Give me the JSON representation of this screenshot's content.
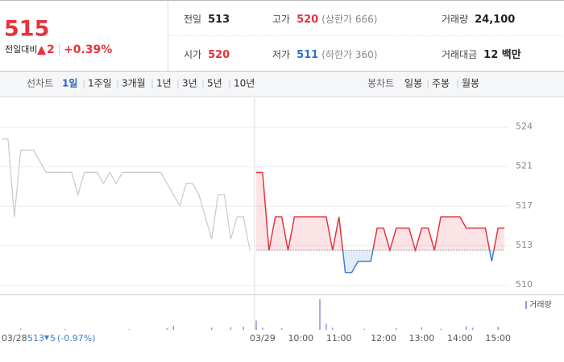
{
  "header": {
    "price": "515",
    "change_label": "전일대비",
    "change": "2",
    "change_pct": "+0.39%"
  },
  "stats": [
    {
      "label": "전일",
      "value": "513",
      "color": "#222"
    },
    {
      "label": "고가",
      "value": "520",
      "note": "(상한가 666)",
      "color": "#e8323c"
    },
    {
      "label": "거래량",
      "value": "24,100",
      "color": "#222"
    },
    {
      "label": "시가",
      "value": "520",
      "color": "#e8323c"
    },
    {
      "label": "저가",
      "value": "511",
      "note": "(하한가 360)",
      "color": "#2f6fd0"
    },
    {
      "label": "거래대금",
      "value": "12 백만",
      "color": "#222"
    }
  ],
  "tabs": {
    "line_label": "선차트",
    "line_items": [
      "1일",
      "1주일",
      "3개월",
      "1년",
      "3년",
      "5년",
      "10년"
    ],
    "selected": 0,
    "candle_label": "봉차트",
    "candle_items": [
      "일봉",
      "주봉",
      "월봉"
    ]
  },
  "chart_data": {
    "type": "line",
    "categories": [
      null,
      null,
      "03/28",
      null,
      null,
      null,
      null,
      null,
      null,
      null,
      null,
      null,
      null,
      null,
      null,
      null,
      null,
      null,
      null,
      null,
      null,
      null,
      null,
      null,
      null,
      null,
      null,
      null,
      null,
      null,
      null,
      null,
      null,
      null,
      null,
      null,
      null,
      null,
      null,
      null,
      null,
      "03/29",
      null,
      null,
      null,
      null,
      null,
      "10:00",
      null,
      null,
      null,
      null,
      null,
      "11:00",
      null,
      null,
      null,
      null,
      null,
      null,
      "12:00",
      null,
      null,
      null,
      null,
      null,
      "13:00",
      null,
      null,
      null,
      null,
      null,
      "14:00",
      null,
      null,
      null,
      null,
      null,
      "15:00",
      null
    ],
    "series": [
      {
        "color": "#c9cdd2",
        "values": [
          523,
          523,
          516,
          522,
          522,
          522,
          521,
          520,
          520,
          520,
          520,
          520,
          518,
          520,
          520,
          520,
          519,
          520,
          519,
          520,
          520,
          520,
          520,
          520,
          520,
          520,
          519,
          518,
          517,
          519,
          519,
          518,
          516,
          514,
          518,
          518,
          514,
          516,
          516,
          513,
          null,
          null,
          null,
          null,
          null,
          null,
          null,
          null,
          null,
          null,
          null,
          null,
          null,
          null,
          null,
          null,
          null,
          null,
          null,
          null,
          null,
          null,
          null,
          null,
          null,
          null,
          null,
          null,
          null,
          null,
          null,
          null,
          null,
          null,
          null,
          null,
          null,
          null,
          null,
          null
        ]
      },
      {
        "color": "#e8323c",
        "color_below": "#3b7fd6",
        "values": [
          null,
          null,
          null,
          null,
          null,
          null,
          null,
          null,
          null,
          null,
          null,
          null,
          null,
          null,
          null,
          null,
          null,
          null,
          null,
          null,
          null,
          null,
          null,
          null,
          null,
          null,
          null,
          null,
          null,
          null,
          null,
          null,
          null,
          null,
          null,
          null,
          null,
          null,
          null,
          null,
          520,
          520,
          513,
          516,
          516,
          513,
          516,
          516,
          516,
          516,
          516,
          516,
          513,
          516,
          511,
          511,
          512,
          512,
          512,
          515,
          515,
          513,
          515,
          515,
          515,
          513,
          515,
          515,
          513,
          516,
          516,
          516,
          516,
          515,
          515,
          515,
          515,
          512,
          515,
          515
        ]
      },
      {
        "name": "거래량",
        "color": "#9b8fd6",
        "axis": "volume",
        "values": [
          0,
          0,
          0,
          120,
          0,
          0,
          0,
          0,
          0,
          0,
          80,
          0,
          0,
          0,
          0,
          0,
          0,
          0,
          0,
          0,
          60,
          0,
          0,
          0,
          0,
          0,
          150,
          400,
          0,
          0,
          0,
          0,
          0,
          200,
          0,
          0,
          250,
          0,
          300,
          0,
          900,
          200,
          0,
          0,
          150,
          0,
          0,
          0,
          0,
          0,
          3000,
          600,
          200,
          0,
          0,
          0,
          0,
          100,
          0,
          0,
          0,
          0,
          150,
          0,
          0,
          0,
          250,
          0,
          0,
          100,
          0,
          0,
          0,
          350,
          200,
          0,
          0,
          0,
          300,
          0
        ]
      }
    ],
    "baseline": 513,
    "ylim": [
      509.1,
      526.1
    ],
    "yticks": [
      {
        "value": 509.9,
        "label": "510"
      },
      {
        "value": 513.45,
        "label": "513"
      },
      517,
      {
        "value": 520.55,
        "label": "521"
      },
      {
        "value": 524.1,
        "label": "524"
      }
    ],
    "grid": true,
    "summary": {
      "value": "513",
      "change": "5",
      "pct": "(-0.97%)"
    }
  }
}
